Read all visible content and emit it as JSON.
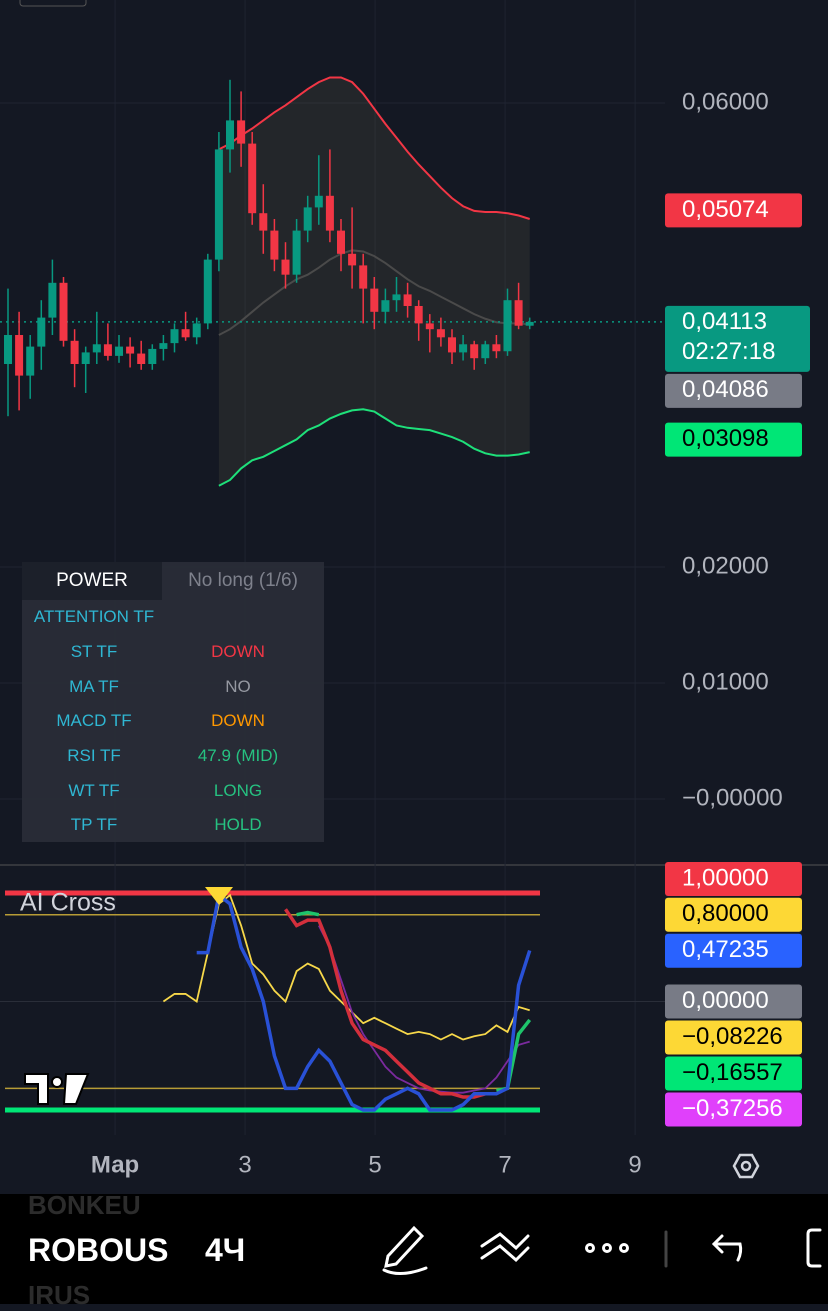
{
  "chart_data": [
    {
      "type": "candlestick",
      "candles": [
        [
          0.0375,
          0.044,
          0.033,
          0.04
        ],
        [
          0.04,
          0.042,
          0.0335,
          0.0365
        ],
        [
          0.0365,
          0.04,
          0.0345,
          0.039
        ],
        [
          0.039,
          0.043,
          0.037,
          0.0415
        ],
        [
          0.0415,
          0.0465,
          0.04,
          0.0445
        ],
        [
          0.0445,
          0.045,
          0.039,
          0.0395
        ],
        [
          0.0395,
          0.0405,
          0.0355,
          0.0375
        ],
        [
          0.0375,
          0.039,
          0.035,
          0.0385
        ],
        [
          0.0385,
          0.042,
          0.0375,
          0.0392
        ],
        [
          0.0392,
          0.041,
          0.0378,
          0.0382
        ],
        [
          0.0382,
          0.04,
          0.0376,
          0.039
        ],
        [
          0.039,
          0.0398,
          0.0372,
          0.0384
        ],
        [
          0.0384,
          0.0395,
          0.037,
          0.0375
        ],
        [
          0.0375,
          0.0392,
          0.037,
          0.0388
        ],
        [
          0.0388,
          0.04,
          0.0378,
          0.0393
        ],
        [
          0.0393,
          0.041,
          0.0385,
          0.0405
        ],
        [
          0.0405,
          0.042,
          0.0395,
          0.0398
        ],
        [
          0.0398,
          0.0415,
          0.0392,
          0.041
        ],
        [
          0.041,
          0.047,
          0.0405,
          0.0465
        ],
        [
          0.0465,
          0.0575,
          0.0455,
          0.056
        ],
        [
          0.056,
          0.062,
          0.054,
          0.0585
        ],
        [
          0.0585,
          0.061,
          0.0545,
          0.0565
        ],
        [
          0.0565,
          0.0575,
          0.0495,
          0.0505
        ],
        [
          0.0505,
          0.053,
          0.047,
          0.049
        ],
        [
          0.049,
          0.05,
          0.0455,
          0.0465
        ],
        [
          0.0465,
          0.048,
          0.044,
          0.0452
        ],
        [
          0.0452,
          0.05,
          0.0445,
          0.049
        ],
        [
          0.049,
          0.052,
          0.048,
          0.051
        ],
        [
          0.051,
          0.0555,
          0.0495,
          0.052
        ],
        [
          0.052,
          0.056,
          0.048,
          0.049
        ],
        [
          0.049,
          0.05,
          0.0455,
          0.047
        ],
        [
          0.047,
          0.051,
          0.044,
          0.046
        ],
        [
          0.046,
          0.047,
          0.041,
          0.044
        ],
        [
          0.044,
          0.045,
          0.0405,
          0.042
        ],
        [
          0.042,
          0.044,
          0.041,
          0.043
        ],
        [
          0.043,
          0.045,
          0.042,
          0.0435
        ],
        [
          0.0435,
          0.0445,
          0.0415,
          0.0425
        ],
        [
          0.0425,
          0.043,
          0.0395,
          0.041
        ],
        [
          0.041,
          0.0418,
          0.0385,
          0.0405
        ],
        [
          0.0405,
          0.0415,
          0.039,
          0.0398
        ],
        [
          0.0398,
          0.0405,
          0.0375,
          0.0385
        ],
        [
          0.0385,
          0.04,
          0.0378,
          0.0392
        ],
        [
          0.0392,
          0.0395,
          0.037,
          0.038
        ],
        [
          0.038,
          0.0395,
          0.0375,
          0.0392
        ],
        [
          0.0392,
          0.04,
          0.038,
          0.0386
        ],
        [
          0.0386,
          0.044,
          0.0382,
          0.043
        ],
        [
          0.043,
          0.0445,
          0.0405,
          0.0408
        ],
        [
          0.0408,
          0.0415,
          0.0405,
          0.04113
        ]
      ],
      "up_color": "#089981",
      "down_color": "#f23645",
      "bands": [
        {
          "color": "#f23645",
          "values": [
            null,
            null,
            null,
            null,
            null,
            null,
            null,
            null,
            null,
            null,
            null,
            null,
            null,
            null,
            null,
            null,
            null,
            null,
            null,
            0.056,
            0.0565,
            0.0572,
            0.0578,
            0.0585,
            0.0592,
            0.0598,
            0.0605,
            0.0612,
            0.0618,
            0.0622,
            0.0622,
            0.0618,
            0.0608,
            0.0595,
            0.0582,
            0.057,
            0.0558,
            0.0547,
            0.0537,
            0.0527,
            0.0518,
            0.0511,
            0.0507,
            0.0506,
            0.0506,
            0.0505,
            0.0503,
            0.05
          ]
        },
        {
          "color": "#4a4a4a",
          "values": [
            null,
            null,
            null,
            null,
            null,
            null,
            null,
            null,
            null,
            null,
            null,
            null,
            null,
            null,
            null,
            null,
            null,
            null,
            null,
            0.04,
            0.0405,
            0.0412,
            0.042,
            0.0428,
            0.0435,
            0.0442,
            0.0448,
            0.0452,
            0.0458,
            0.0465,
            0.047,
            0.0473,
            0.0472,
            0.0468,
            0.0462,
            0.0455,
            0.0448,
            0.0442,
            0.0438,
            0.0433,
            0.0428,
            0.0423,
            0.0418,
            0.0414,
            0.0411,
            0.041,
            0.041,
            0.0409
          ]
        },
        {
          "color": "#1ee07a",
          "values": [
            null,
            null,
            null,
            null,
            null,
            null,
            null,
            null,
            null,
            null,
            null,
            null,
            null,
            null,
            null,
            null,
            null,
            null,
            null,
            0.027,
            0.0275,
            0.0285,
            0.0292,
            0.0295,
            0.03,
            0.0305,
            0.031,
            0.0318,
            0.0322,
            0.0328,
            0.0332,
            0.0335,
            0.0336,
            0.0334,
            0.0328,
            0.0322,
            0.032,
            0.0319,
            0.0318,
            0.0315,
            0.0312,
            0.0308,
            0.0302,
            0.0298,
            0.0296,
            0.0296,
            0.0297,
            0.0299
          ]
        }
      ],
      "ylim": [
        -0.00526,
        0.06888
      ],
      "yticks": [
        {
          "value": 0.06,
          "label": "0,06000"
        },
        {
          "value": 0.02,
          "label": "0,02000"
        },
        {
          "value": 0.01,
          "label": "0,01000"
        },
        {
          "value": 0,
          "label": "−0,00000"
        }
      ],
      "badges": [
        {
          "value": 0.05074,
          "label": "0,05074",
          "color": "#f23645"
        },
        {
          "value": 0.04113,
          "label": "0,04113",
          "sublabel": "02:27:18",
          "color": "#089981"
        },
        {
          "value": 0.04086,
          "label": "0,04086",
          "color": "#787b86"
        },
        {
          "value": 0.03098,
          "label": "0,03098",
          "color": "#00e676"
        }
      ]
    },
    {
      "type": "line",
      "title": "AI Cross",
      "series": [
        {
          "color": "#f7d84a",
          "values": [
            null,
            null,
            null,
            null,
            null,
            null,
            null,
            null,
            null,
            null,
            null,
            null,
            null,
            null,
            0,
            0.07,
            0.07,
            0,
            0.45,
            0.9,
            0.98,
            0.7,
            0.35,
            0.25,
            0.1,
            0,
            0.28,
            0.35,
            0.3,
            0.1,
            0,
            -0.1,
            -0.2,
            -0.15,
            -0.2,
            -0.25,
            -0.3,
            -0.28,
            -0.3,
            -0.35,
            -0.3,
            -0.35,
            -0.32,
            -0.3,
            -0.22,
            -0.28,
            -0.05,
            -0.08
          ]
        },
        {
          "color": "#7b2a9e",
          "values": [
            null,
            null,
            null,
            null,
            null,
            null,
            null,
            null,
            null,
            null,
            null,
            null,
            null,
            null,
            null,
            null,
            null,
            null,
            null,
            null,
            null,
            null,
            null,
            null,
            null,
            null,
            null,
            null,
            0.7,
            0.5,
            0.2,
            -0.1,
            -0.3,
            -0.45,
            -0.6,
            -0.7,
            -0.75,
            -0.8,
            -0.82,
            -0.83,
            -0.84,
            -0.84,
            -0.82,
            -0.8,
            -0.7,
            -0.55,
            -0.4,
            -0.37
          ]
        },
        {
          "color": "#d32f3c",
          "values": [
            null,
            null,
            null,
            null,
            null,
            null,
            null,
            null,
            null,
            null,
            null,
            null,
            null,
            null,
            null,
            null,
            null,
            null,
            null,
            null,
            null,
            null,
            null,
            null,
            null,
            0.85,
            0.7,
            0.75,
            0.75,
            0.5,
            0.1,
            -0.2,
            -0.35,
            -0.4,
            -0.45,
            -0.55,
            -0.65,
            -0.75,
            -0.8,
            -0.85,
            -0.85,
            -0.88,
            -0.88,
            -0.85,
            null,
            null,
            null,
            null
          ]
        },
        {
          "color": "#1ec46b",
          "values": [
            null,
            null,
            null,
            null,
            null,
            null,
            null,
            null,
            null,
            null,
            null,
            null,
            null,
            null,
            null,
            null,
            null,
            null,
            null,
            null,
            null,
            null,
            null,
            null,
            null,
            null,
            0.8,
            0.82,
            0.8,
            null,
            null,
            null,
            null,
            null,
            null,
            null,
            null,
            null,
            null,
            null,
            null,
            null,
            null,
            null,
            -0.82,
            -0.8,
            -0.3,
            -0.17
          ]
        },
        {
          "color": "#2951d6",
          "values": [
            null,
            null,
            null,
            null,
            null,
            null,
            null,
            null,
            null,
            null,
            null,
            null,
            null,
            null,
            null,
            null,
            null,
            0.45,
            0.45,
            0.98,
            0.9,
            0.5,
            0.3,
            0,
            -0.5,
            -0.8,
            -0.8,
            -0.6,
            -0.45,
            -0.55,
            -0.75,
            -0.95,
            -1,
            -1,
            -0.9,
            -0.85,
            -0.8,
            -0.85,
            -1,
            -1,
            -1,
            -0.95,
            -0.85,
            -0.85,
            -0.85,
            -0.8,
            0.15,
            0.47
          ]
        }
      ],
      "levels": [
        {
          "value": 1,
          "color": "#f23645"
        },
        {
          "value": 0.8,
          "color": "#b79c36"
        },
        {
          "value": -0.8,
          "color": "#b79c36"
        },
        {
          "value": -1,
          "color": "#00e676"
        }
      ],
      "ylim": [
        -1.23,
        1.258
      ],
      "badges": [
        {
          "value": 1,
          "label": "1,00000",
          "color": "#f23645"
        },
        {
          "value": 0.8,
          "label": "0,80000",
          "color": "#fdd835"
        },
        {
          "value": 0.47235,
          "label": "0,47235",
          "color": "#2962ff"
        },
        {
          "value": 0,
          "label": "0,00000",
          "color": "#787b86"
        },
        {
          "value": -0.08226,
          "label": "−0,08226",
          "color": "#fdd835"
        },
        {
          "value": -0.16557,
          "label": "−0,16557",
          "color": "#00e676"
        },
        {
          "value": -0.37256,
          "label": "−0,37256",
          "color": "#e040fb"
        }
      ],
      "xlim": [
        -0.77,
        9.46
      ],
      "xticks": [
        {
          "value": 1,
          "label": "Мар"
        },
        3,
        5,
        7,
        9
      ]
    }
  ],
  "panel": {
    "header": [
      "POWER",
      "No long (1/6)"
    ],
    "title": "ATTENTION TF",
    "rows": [
      [
        "ST TF",
        "DOWN",
        "#f23645"
      ],
      [
        "MA TF",
        "NO",
        "#9598a1"
      ],
      [
        "MACD TF",
        "DOWN",
        "#ff9800"
      ],
      [
        "RSI TF",
        "47.9 (MID)",
        "#26c281"
      ],
      [
        "WT TF",
        "LONG",
        "#26c281"
      ],
      [
        "TP TF",
        "HOLD",
        "#26c281"
      ]
    ]
  },
  "toolbar": {
    "ghost_top": "BONKEU",
    "symbol": "ROBOUS",
    "interval": "4Ч",
    "ghost_bottom": "IRUS"
  }
}
